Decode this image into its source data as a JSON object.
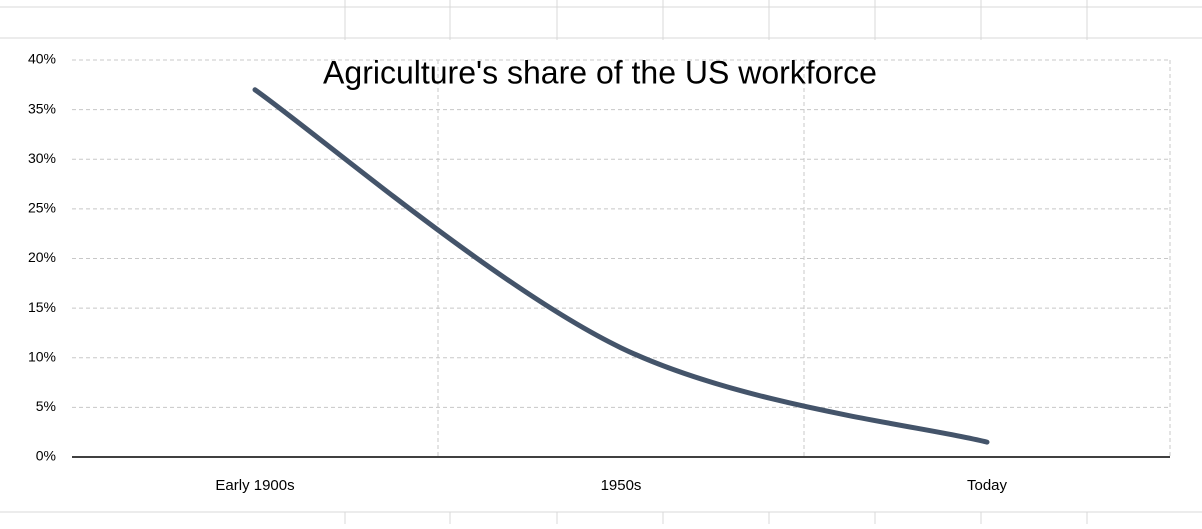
{
  "chart_data": {
    "type": "line",
    "title": "Agriculture's share of the US workforce",
    "categories": [
      "Early 1900s",
      "1950s",
      "Today"
    ],
    "series": [
      {
        "name": "Agriculture's share of the US workforce",
        "color": "#44546a",
        "values": [
          37,
          11,
          1.5
        ]
      }
    ],
    "smooth": true,
    "ylim": [
      0,
      40
    ],
    "yticks": [
      {
        "value": 0,
        "label": "0%"
      },
      {
        "value": 5,
        "label": "5%"
      },
      {
        "value": 10,
        "label": "10%"
      },
      {
        "value": 15,
        "label": "15%"
      },
      {
        "value": 20,
        "label": "20%"
      },
      {
        "value": 25,
        "label": "25%"
      },
      {
        "value": 30,
        "label": "30%"
      },
      {
        "value": 35,
        "label": "35%"
      },
      {
        "value": 40,
        "label": "40%"
      }
    ],
    "grid": true
  }
}
